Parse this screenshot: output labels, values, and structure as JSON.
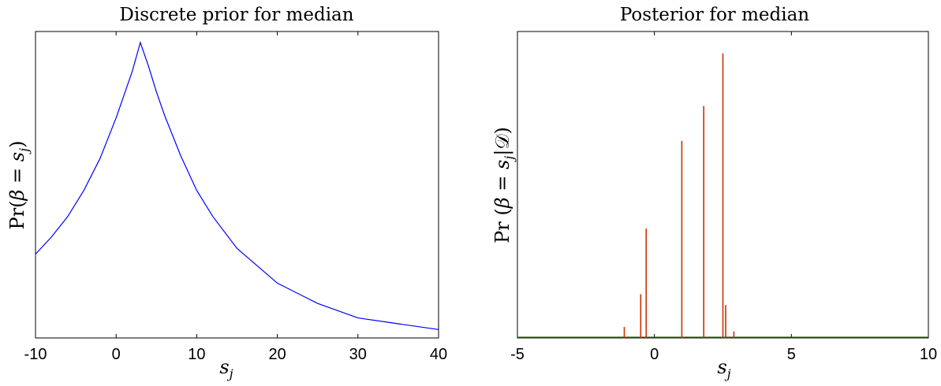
{
  "chart_data": [
    {
      "type": "line",
      "title": "Discrete prior for median",
      "xlabel": "s_j",
      "xlabel_main": "s",
      "xlabel_sub": "j",
      "ylabel": "Pr(β = s_j)",
      "ylabel_parts": {
        "pre": "Pr(",
        "beta": "β",
        "eq": " = ",
        "s": "s",
        "sub": "j",
        "post": ")"
      },
      "xlim": [
        -10,
        40
      ],
      "ylim": [
        0,
        1.0
      ],
      "xticks": [
        "-10",
        "0",
        "10",
        "20",
        "30",
        "40"
      ],
      "xtick_values": [
        -10,
        0,
        10,
        20,
        30,
        40
      ],
      "color": "#0000ff",
      "series": [
        {
          "x": [
            -10,
            -8,
            -6,
            -4,
            -2,
            0,
            1,
            2,
            3,
            4,
            5,
            6,
            8,
            10,
            12,
            15,
            20,
            25,
            30,
            35,
            40
          ],
          "values": [
            0.27,
            0.33,
            0.4,
            0.49,
            0.6,
            0.74,
            0.82,
            0.9,
            1.0,
            0.92,
            0.83,
            0.75,
            0.61,
            0.49,
            0.4,
            0.29,
            0.17,
            0.1,
            0.05,
            0.03,
            0.01
          ]
        }
      ]
    },
    {
      "type": "bar",
      "title": "Posterior for median",
      "xlabel": "s_j",
      "xlabel_main": "s",
      "xlabel_sub": "j",
      "ylabel": "Pr (β = s_j|𝒟)",
      "ylabel_parts": {
        "pre": "Pr (",
        "beta": "β",
        "eq": " = ",
        "s": "s",
        "sub": "j",
        "post": "|𝒟)"
      },
      "xlim": [
        -5,
        10
      ],
      "ylim": [
        0,
        0.7
      ],
      "xticks": [
        "-5",
        "0",
        "5",
        "10"
      ],
      "xtick_values": [
        -5,
        0,
        5,
        10
      ],
      "color": "#cc3300",
      "x": [
        -1.1,
        -0.5,
        -0.3,
        1.0,
        1.8,
        2.5,
        2.6,
        2.9
      ],
      "values": [
        0.025,
        0.1,
        0.25,
        0.45,
        0.53,
        0.65,
        0.075,
        0.015
      ]
    }
  ]
}
